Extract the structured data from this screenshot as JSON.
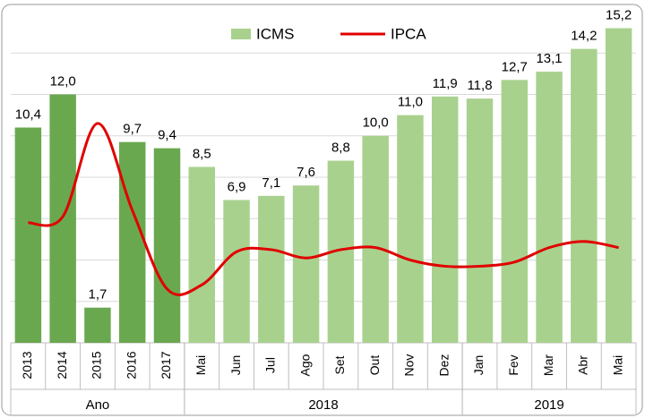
{
  "chart_data": {
    "type": "bar",
    "category_groups": [
      {
        "label": "Ano",
        "color": "#6aa84f",
        "categories": [
          "2013",
          "2014",
          "2015",
          "2016",
          "2017"
        ]
      },
      {
        "label": "2018",
        "color": "#a9d18e",
        "categories": [
          "Mai",
          "Jun",
          "Jul",
          "Ago",
          "Set",
          "Out",
          "Nov",
          "Dez"
        ]
      },
      {
        "label": "2019",
        "color": "#a9d18e",
        "categories": [
          "Jan",
          "Fev",
          "Mar",
          "Abr",
          "Mai"
        ]
      }
    ],
    "series": [
      {
        "name": "ICMS",
        "type": "bar",
        "color": "#a9d18e",
        "values": [
          10.4,
          12.0,
          1.7,
          9.7,
          9.4,
          8.5,
          6.9,
          7.1,
          7.6,
          8.8,
          10.0,
          11.0,
          11.9,
          11.8,
          12.7,
          13.1,
          14.2,
          15.2
        ],
        "value_labels": [
          "10,4",
          "12,0",
          "1,7",
          "9,7",
          "9,4",
          "8,5",
          "6,9",
          "7,1",
          "7,6",
          "8,8",
          "10,0",
          "11,0",
          "11,9",
          "11,8",
          "12,7",
          "13,1",
          "14,2",
          "15,2"
        ]
      },
      {
        "name": "IPCA",
        "type": "line",
        "color": "#e00000",
        "values": [
          5.8,
          6.1,
          10.6,
          6.4,
          2.6,
          2.8,
          4.4,
          4.5,
          4.1,
          4.5,
          4.6,
          4.0,
          3.7,
          3.7,
          3.9,
          4.6,
          4.9,
          4.6
        ]
      }
    ],
    "ylim": [
      0,
      16
    ],
    "yticks": [
      0,
      2,
      4,
      6,
      8,
      10,
      12,
      14,
      16
    ],
    "grid": true,
    "legend": "top"
  }
}
